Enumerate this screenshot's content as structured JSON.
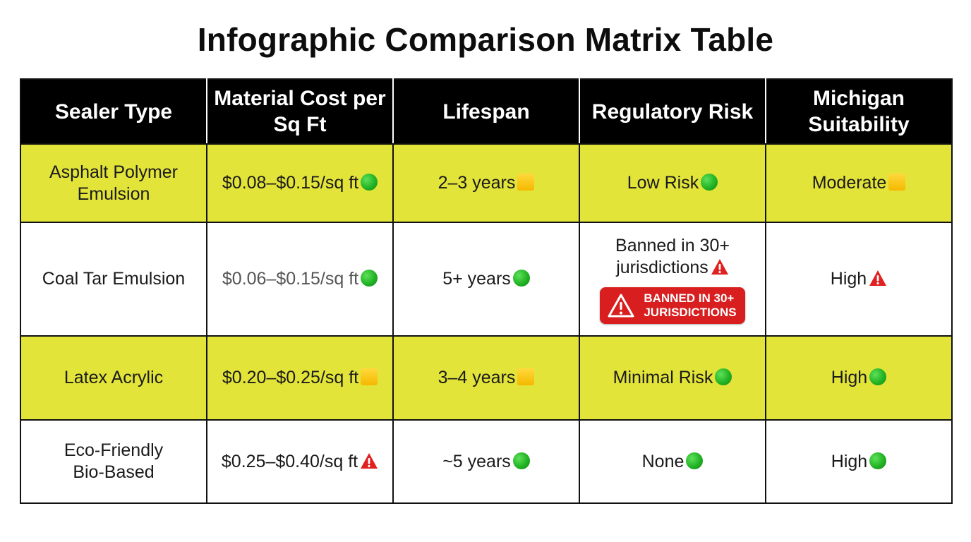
{
  "title": "Infographic Comparison Matrix Table",
  "colors": {
    "header_bg": "#000000",
    "highlight_row": "#e3e43a",
    "badge_red": "#d81e1e",
    "green": "#22b324",
    "yellow": "#f5b800"
  },
  "table": {
    "headers": [
      "Sealer Type",
      "Material Cost per Sq Ft",
      "Lifespan",
      "Regulatory Risk",
      "Michigan Suitability"
    ],
    "rows": [
      {
        "sealer_type": "Asphalt Polymer Emulsion",
        "cost": "$0.08–$0.15/sq ft",
        "cost_icon": "green-circle-icon",
        "lifespan": "2–3 years",
        "lifespan_icon": "yellow-square-icon",
        "risk": "Low Risk",
        "risk_icon": "green-circle-icon",
        "suitability": "Moderate",
        "suitability_icon": "yellow-square-icon"
      },
      {
        "sealer_type": "Coal Tar Emulsion",
        "cost": "$0.06–$0.15/sq ft",
        "cost_icon": "green-circle-icon",
        "lifespan": "5+ years",
        "lifespan_icon": "green-circle-icon",
        "risk": "Banned in 30+ jurisdictions",
        "risk_icon": "warning-icon",
        "badge": "BANNED IN 30+\nJURISDICTIONS",
        "badge_icon": "warning-outline-icon",
        "suitability": "High",
        "suitability_icon": "warning-icon"
      },
      {
        "sealer_type": "Latex Acrylic",
        "cost": "$0.20–$0.25/sq ft",
        "cost_icon": "yellow-square-icon",
        "lifespan": "3–4 years",
        "lifespan_icon": "yellow-square-icon",
        "risk": "Minimal Risk",
        "risk_icon": "green-circle-icon",
        "suitability": "High",
        "suitability_icon": "green-circle-icon"
      },
      {
        "sealer_type": "Eco-Friendly Bio-Based",
        "cost": "$0.25–$0.40/sq ft",
        "cost_icon": "warning-icon",
        "lifespan": "~5 years",
        "lifespan_icon": "green-circle-icon",
        "risk": "None",
        "risk_icon": "green-circle-icon",
        "suitability": "High",
        "suitability_icon": "green-circle-icon"
      }
    ]
  }
}
